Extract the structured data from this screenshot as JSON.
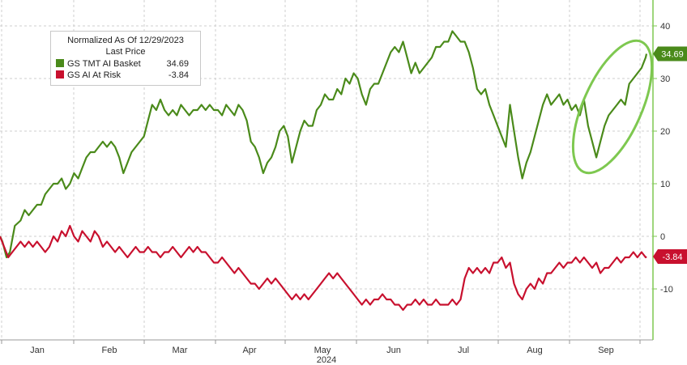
{
  "chart_data": {
    "type": "line",
    "legend": {
      "title_line1": "Normalized As Of 12/29/2023",
      "title_line2": "Last Price",
      "placement": "top-left"
    },
    "x_labels": [
      "Jan",
      "Feb",
      "Mar",
      "Apr",
      "May",
      "Jun",
      "Jul",
      "Aug",
      "Sep"
    ],
    "year_label": "2024",
    "y_ticks": [
      40,
      30,
      20,
      10,
      0,
      -10
    ],
    "ylim": [
      -17,
      45
    ],
    "grid": true,
    "series": [
      {
        "name": "GS TMT AI Basket",
        "color": "#4a8a1a",
        "last_value_label": "34.69",
        "points": [
          [
            0,
            0
          ],
          [
            3,
            -1
          ],
          [
            8,
            -4
          ],
          [
            12,
            -3
          ],
          [
            18,
            2
          ],
          [
            25,
            3
          ],
          [
            30,
            5
          ],
          [
            35,
            4
          ],
          [
            40,
            5
          ],
          [
            45,
            6
          ],
          [
            50,
            6
          ],
          [
            55,
            8
          ],
          [
            60,
            9
          ],
          [
            65,
            10
          ],
          [
            70,
            10
          ],
          [
            75,
            11
          ],
          [
            80,
            9
          ],
          [
            85,
            10
          ],
          [
            90,
            12
          ],
          [
            95,
            11
          ],
          [
            100,
            13
          ],
          [
            105,
            15
          ],
          [
            110,
            16
          ],
          [
            115,
            16
          ],
          [
            120,
            17
          ],
          [
            125,
            18
          ],
          [
            130,
            17
          ],
          [
            135,
            18
          ],
          [
            140,
            17
          ],
          [
            145,
            15
          ],
          [
            150,
            12
          ],
          [
            155,
            14
          ],
          [
            160,
            16
          ],
          [
            165,
            17
          ],
          [
            170,
            18
          ],
          [
            175,
            19
          ],
          [
            180,
            22
          ],
          [
            185,
            25
          ],
          [
            190,
            24
          ],
          [
            195,
            26
          ],
          [
            200,
            24
          ],
          [
            205,
            23
          ],
          [
            210,
            24
          ],
          [
            215,
            23
          ],
          [
            220,
            25
          ],
          [
            225,
            24
          ],
          [
            230,
            23
          ],
          [
            235,
            24
          ],
          [
            240,
            24
          ],
          [
            245,
            25
          ],
          [
            250,
            24
          ],
          [
            255,
            25
          ],
          [
            260,
            24
          ],
          [
            265,
            24
          ],
          [
            270,
            23
          ],
          [
            275,
            25
          ],
          [
            280,
            24
          ],
          [
            285,
            23
          ],
          [
            290,
            25
          ],
          [
            295,
            24
          ],
          [
            300,
            22
          ],
          [
            305,
            18
          ],
          [
            310,
            17
          ],
          [
            315,
            15
          ],
          [
            320,
            12
          ],
          [
            325,
            14
          ],
          [
            330,
            15
          ],
          [
            335,
            17
          ],
          [
            340,
            20
          ],
          [
            345,
            21
          ],
          [
            350,
            19
          ],
          [
            355,
            14
          ],
          [
            360,
            17
          ],
          [
            365,
            20
          ],
          [
            370,
            22
          ],
          [
            375,
            21
          ],
          [
            380,
            21
          ],
          [
            385,
            24
          ],
          [
            390,
            25
          ],
          [
            395,
            27
          ],
          [
            400,
            26
          ],
          [
            405,
            26
          ],
          [
            410,
            28
          ],
          [
            415,
            27
          ],
          [
            420,
            30
          ],
          [
            425,
            29
          ],
          [
            430,
            31
          ],
          [
            435,
            30
          ],
          [
            440,
            27
          ],
          [
            445,
            25
          ],
          [
            450,
            28
          ],
          [
            455,
            29
          ],
          [
            460,
            29
          ],
          [
            465,
            31
          ],
          [
            470,
            33
          ],
          [
            475,
            35
          ],
          [
            480,
            36
          ],
          [
            485,
            35
          ],
          [
            490,
            37
          ],
          [
            495,
            34
          ],
          [
            500,
            31
          ],
          [
            505,
            33
          ],
          [
            510,
            31
          ],
          [
            515,
            32
          ],
          [
            520,
            33
          ],
          [
            525,
            34
          ],
          [
            530,
            36
          ],
          [
            535,
            36
          ],
          [
            540,
            37
          ],
          [
            545,
            37
          ],
          [
            550,
            39
          ],
          [
            555,
            38
          ],
          [
            560,
            37
          ],
          [
            565,
            37
          ],
          [
            570,
            35
          ],
          [
            575,
            32
          ],
          [
            580,
            28
          ],
          [
            585,
            27
          ],
          [
            590,
            28
          ],
          [
            595,
            25
          ],
          [
            600,
            23
          ],
          [
            605,
            21
          ],
          [
            610,
            19
          ],
          [
            615,
            17
          ],
          [
            620,
            25
          ],
          [
            625,
            20
          ],
          [
            630,
            15
          ],
          [
            635,
            11
          ],
          [
            640,
            14
          ],
          [
            645,
            16
          ],
          [
            650,
            19
          ],
          [
            655,
            22
          ],
          [
            660,
            25
          ],
          [
            665,
            27
          ],
          [
            670,
            25
          ],
          [
            675,
            26
          ],
          [
            680,
            27
          ],
          [
            685,
            25
          ],
          [
            690,
            26
          ],
          [
            695,
            24
          ],
          [
            700,
            25
          ],
          [
            705,
            23
          ],
          [
            710,
            26
          ],
          [
            715,
            21
          ],
          [
            720,
            18
          ],
          [
            725,
            15
          ],
          [
            730,
            18
          ],
          [
            735,
            21
          ],
          [
            740,
            23
          ],
          [
            745,
            24
          ],
          [
            750,
            25
          ],
          [
            755,
            26
          ],
          [
            760,
            25
          ],
          [
            765,
            29
          ],
          [
            770,
            30
          ],
          [
            775,
            31
          ],
          [
            780,
            32
          ],
          [
            785,
            34
          ],
          [
            786,
            34.69
          ]
        ]
      },
      {
        "name": "GS AI At Risk",
        "color": "#c8102e",
        "last_value_label": "-3.84",
        "points": [
          [
            0,
            0
          ],
          [
            5,
            -2
          ],
          [
            10,
            -4
          ],
          [
            15,
            -3
          ],
          [
            20,
            -2
          ],
          [
            25,
            -1
          ],
          [
            30,
            -2
          ],
          [
            35,
            -1
          ],
          [
            40,
            -2
          ],
          [
            45,
            -1
          ],
          [
            50,
            -2
          ],
          [
            55,
            -3
          ],
          [
            60,
            -2
          ],
          [
            65,
            0
          ],
          [
            70,
            -1
          ],
          [
            75,
            1
          ],
          [
            80,
            0
          ],
          [
            85,
            2
          ],
          [
            90,
            0
          ],
          [
            95,
            -1
          ],
          [
            100,
            1
          ],
          [
            105,
            0
          ],
          [
            110,
            -1
          ],
          [
            115,
            1
          ],
          [
            120,
            0
          ],
          [
            125,
            -2
          ],
          [
            130,
            -1
          ],
          [
            135,
            -2
          ],
          [
            140,
            -3
          ],
          [
            145,
            -2
          ],
          [
            150,
            -3
          ],
          [
            155,
            -4
          ],
          [
            160,
            -3
          ],
          [
            165,
            -2
          ],
          [
            170,
            -3
          ],
          [
            175,
            -3
          ],
          [
            180,
            -2
          ],
          [
            185,
            -3
          ],
          [
            190,
            -3
          ],
          [
            195,
            -4
          ],
          [
            200,
            -3
          ],
          [
            205,
            -3
          ],
          [
            210,
            -2
          ],
          [
            215,
            -3
          ],
          [
            220,
            -4
          ],
          [
            225,
            -3
          ],
          [
            230,
            -2
          ],
          [
            235,
            -3
          ],
          [
            240,
            -2
          ],
          [
            245,
            -3
          ],
          [
            250,
            -3
          ],
          [
            255,
            -4
          ],
          [
            260,
            -5
          ],
          [
            265,
            -5
          ],
          [
            270,
            -4
          ],
          [
            275,
            -5
          ],
          [
            280,
            -6
          ],
          [
            285,
            -7
          ],
          [
            290,
            -6
          ],
          [
            295,
            -7
          ],
          [
            300,
            -8
          ],
          [
            305,
            -9
          ],
          [
            310,
            -9
          ],
          [
            315,
            -10
          ],
          [
            320,
            -9
          ],
          [
            325,
            -8
          ],
          [
            330,
            -9
          ],
          [
            335,
            -8
          ],
          [
            340,
            -9
          ],
          [
            345,
            -10
          ],
          [
            350,
            -11
          ],
          [
            355,
            -12
          ],
          [
            360,
            -11
          ],
          [
            365,
            -12
          ],
          [
            370,
            -11
          ],
          [
            375,
            -12
          ],
          [
            380,
            -11
          ],
          [
            385,
            -10
          ],
          [
            390,
            -9
          ],
          [
            395,
            -8
          ],
          [
            400,
            -7
          ],
          [
            405,
            -8
          ],
          [
            410,
            -7
          ],
          [
            415,
            -8
          ],
          [
            420,
            -9
          ],
          [
            425,
            -10
          ],
          [
            430,
            -11
          ],
          [
            435,
            -12
          ],
          [
            440,
            -13
          ],
          [
            445,
            -12
          ],
          [
            450,
            -13
          ],
          [
            455,
            -12
          ],
          [
            460,
            -12
          ],
          [
            465,
            -11
          ],
          [
            470,
            -12
          ],
          [
            475,
            -12
          ],
          [
            480,
            -13
          ],
          [
            485,
            -13
          ],
          [
            490,
            -14
          ],
          [
            495,
            -13
          ],
          [
            500,
            -13
          ],
          [
            505,
            -12
          ],
          [
            510,
            -13
          ],
          [
            515,
            -12
          ],
          [
            520,
            -13
          ],
          [
            525,
            -13
          ],
          [
            530,
            -12
          ],
          [
            535,
            -13
          ],
          [
            540,
            -13
          ],
          [
            545,
            -13
          ],
          [
            550,
            -12
          ],
          [
            555,
            -13
          ],
          [
            560,
            -12
          ],
          [
            565,
            -8
          ],
          [
            570,
            -6
          ],
          [
            575,
            -7
          ],
          [
            580,
            -6
          ],
          [
            585,
            -7
          ],
          [
            590,
            -6
          ],
          [
            595,
            -7
          ],
          [
            600,
            -5
          ],
          [
            605,
            -5
          ],
          [
            610,
            -4
          ],
          [
            615,
            -6
          ],
          [
            620,
            -5
          ],
          [
            625,
            -9
          ],
          [
            630,
            -11
          ],
          [
            635,
            -12
          ],
          [
            640,
            -10
          ],
          [
            645,
            -9
          ],
          [
            650,
            -10
          ],
          [
            655,
            -8
          ],
          [
            660,
            -9
          ],
          [
            665,
            -7
          ],
          [
            670,
            -7
          ],
          [
            675,
            -6
          ],
          [
            680,
            -5
          ],
          [
            685,
            -6
          ],
          [
            690,
            -5
          ],
          [
            695,
            -5
          ],
          [
            700,
            -4
          ],
          [
            705,
            -5
          ],
          [
            710,
            -4
          ],
          [
            715,
            -5
          ],
          [
            720,
            -6
          ],
          [
            725,
            -5
          ],
          [
            730,
            -7
          ],
          [
            735,
            -6
          ],
          [
            740,
            -6
          ],
          [
            745,
            -5
          ],
          [
            750,
            -4
          ],
          [
            755,
            -5
          ],
          [
            760,
            -4
          ],
          [
            765,
            -4
          ],
          [
            770,
            -3
          ],
          [
            775,
            -4
          ],
          [
            780,
            -3
          ],
          [
            785,
            -4
          ],
          [
            786,
            -3.84
          ]
        ]
      }
    ]
  }
}
